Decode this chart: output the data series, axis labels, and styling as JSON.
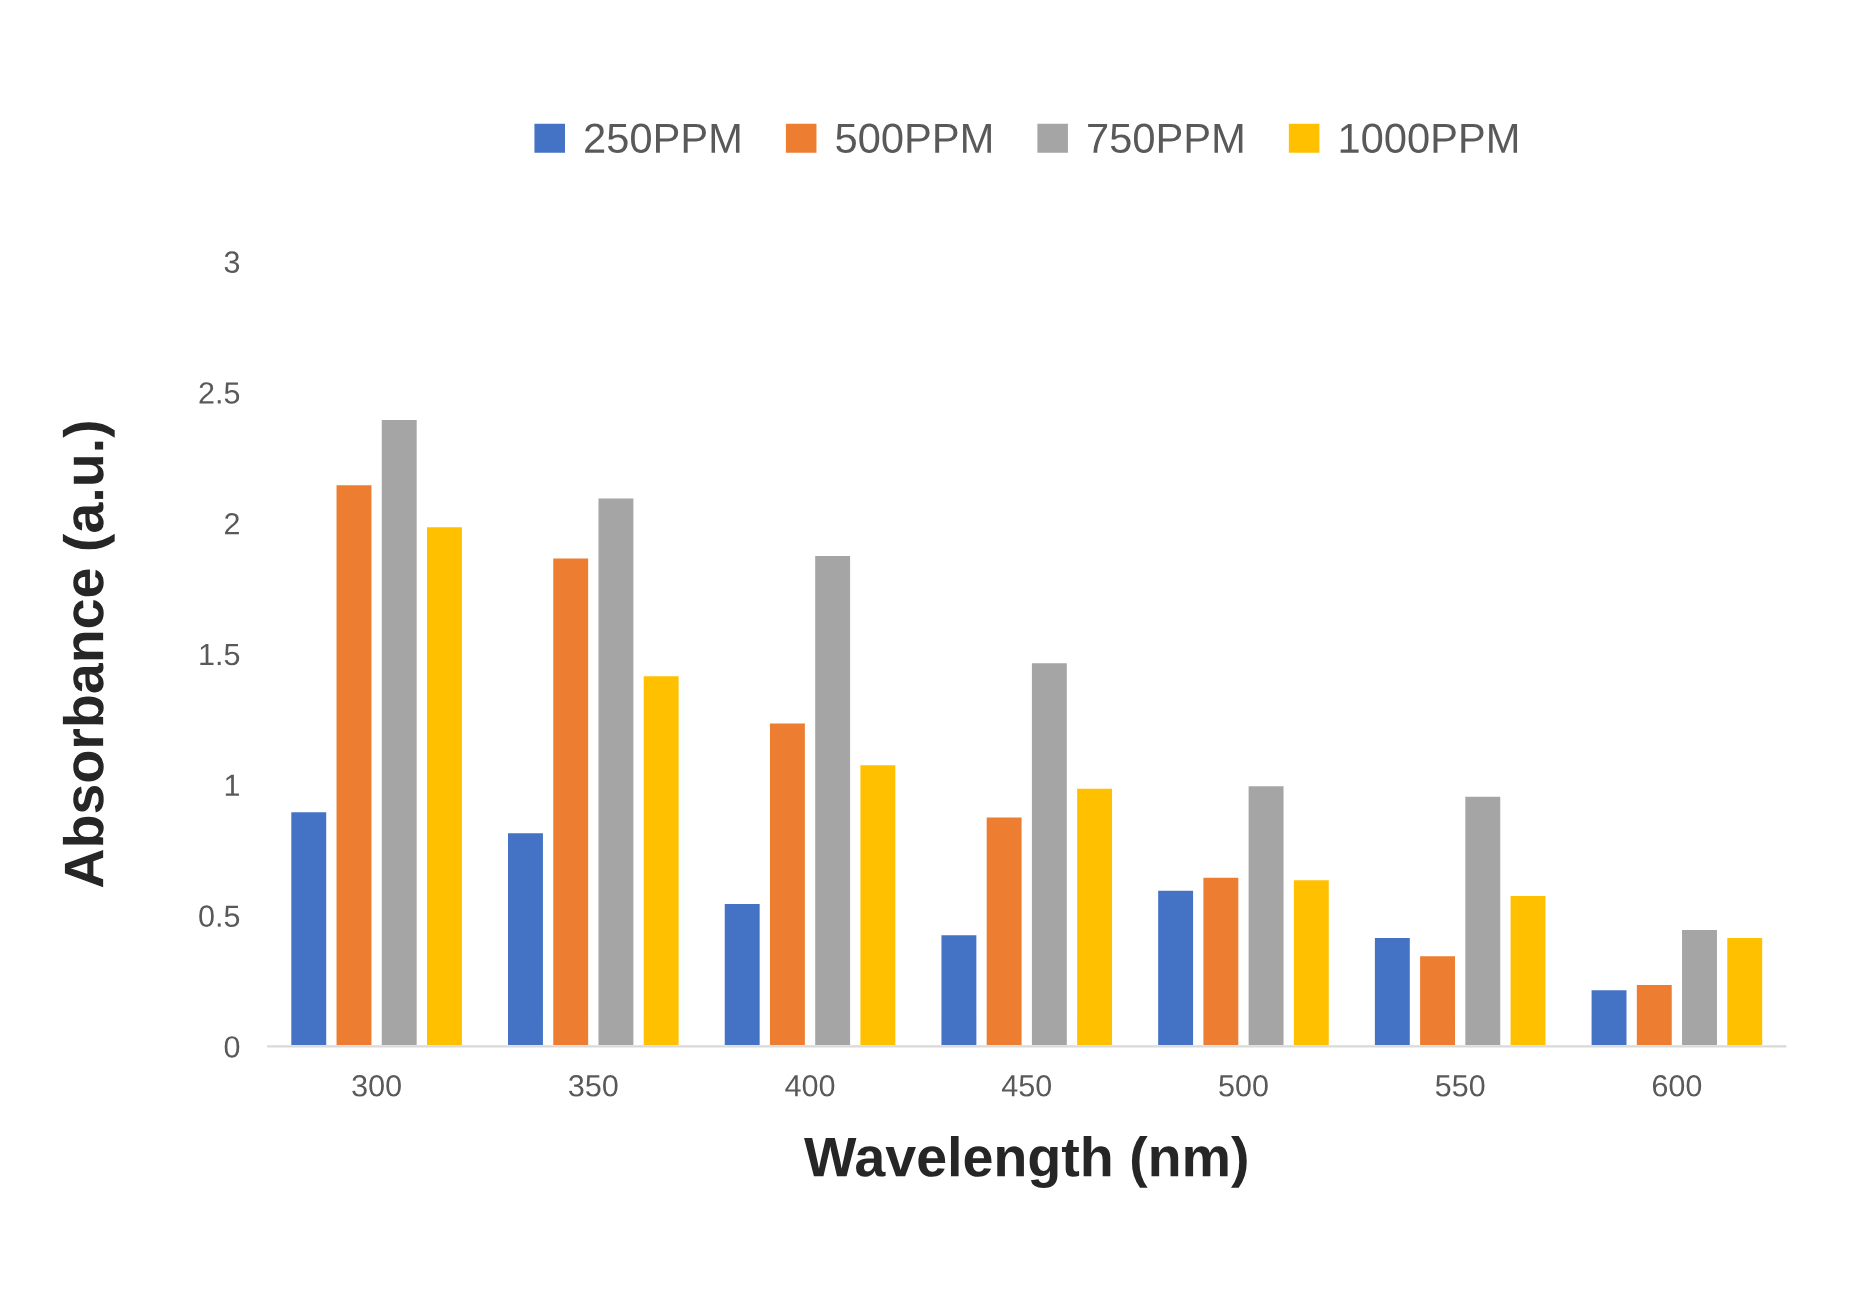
{
  "chart_data": {
    "type": "bar",
    "xlabel": "Wavelength (nm)",
    "ylabel": "Absorbance (a.u.)",
    "categories": [
      "300",
      "350",
      "400",
      "450",
      "500",
      "550",
      "600"
    ],
    "series": [
      {
        "name": "250PPM",
        "color": "#4472c4",
        "values": [
          0.9,
          0.82,
          0.55,
          0.43,
          0.6,
          0.42,
          0.22
        ]
      },
      {
        "name": "500PPM",
        "color": "#ed7d31",
        "values": [
          2.15,
          1.87,
          1.24,
          0.88,
          0.65,
          0.35,
          0.24
        ]
      },
      {
        "name": "750PPM",
        "color": "#a5a5a5",
        "values": [
          2.4,
          2.1,
          1.88,
          1.47,
          1.0,
          0.96,
          0.45
        ]
      },
      {
        "name": "1000PPM",
        "color": "#ffc000",
        "values": [
          1.99,
          1.42,
          1.08,
          0.99,
          0.64,
          0.58,
          0.42
        ]
      }
    ],
    "ylim": [
      0,
      3
    ],
    "yticks": [
      0,
      0.5,
      1,
      1.5,
      2,
      2.5,
      3
    ],
    "grid": false,
    "legend": "top"
  }
}
